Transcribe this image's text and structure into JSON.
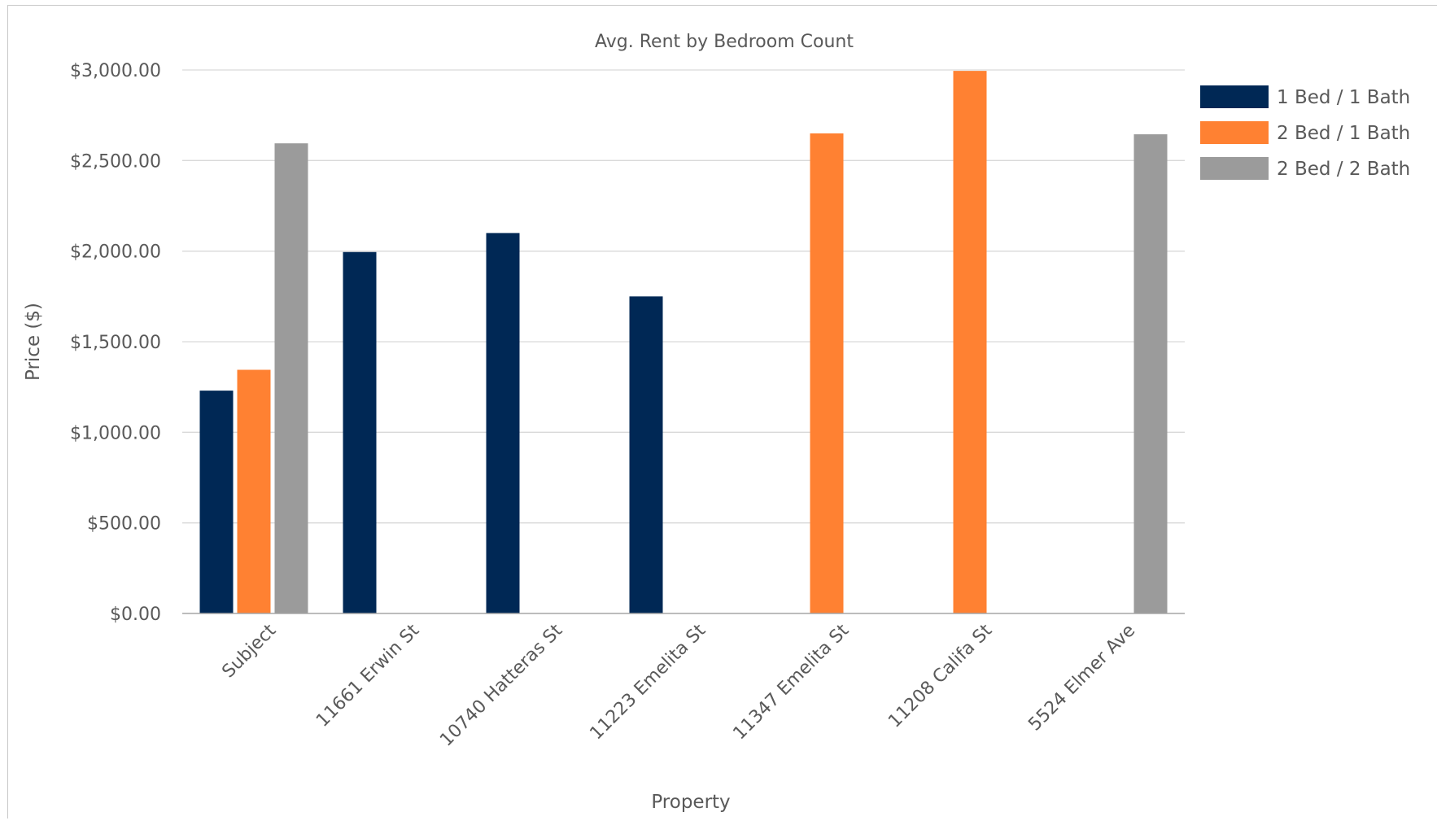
{
  "chart_data": {
    "type": "bar",
    "title": "Avg. Rent by Bedroom Count",
    "xlabel": "Property",
    "ylabel": "Price ($)",
    "categories": [
      "Subject",
      "11661 Erwin St",
      "10740 Hatteras St",
      "11223 Emelita St",
      "11347 Emelita St",
      "11208 Califa St",
      "5524 Elmer Ave"
    ],
    "series": [
      {
        "name": "1 Bed / 1 Bath",
        "color": "#002855",
        "values": [
          1230,
          1995,
          2100,
          1750,
          null,
          null,
          null
        ]
      },
      {
        "name": "2 Bed / 1 Bath",
        "color": "#FF8132",
        "values": [
          1345,
          null,
          null,
          null,
          2650,
          2995,
          null
        ]
      },
      {
        "name": "2 Bed / 2 Bath",
        "color": "#9B9B9B",
        "values": [
          2595,
          null,
          null,
          null,
          null,
          null,
          2645
        ]
      }
    ],
    "ylim": [
      0,
      3000
    ],
    "yticks": [
      0,
      500,
      1000,
      1500,
      2000,
      2500,
      3000
    ],
    "ytick_labels": [
      "$0.00",
      "$500.00",
      "$1,000.00",
      "$1,500.00",
      "$2,000.00",
      "$2,500.00",
      "$3,000.00"
    ],
    "grid": true,
    "legend_position": "top-right"
  }
}
